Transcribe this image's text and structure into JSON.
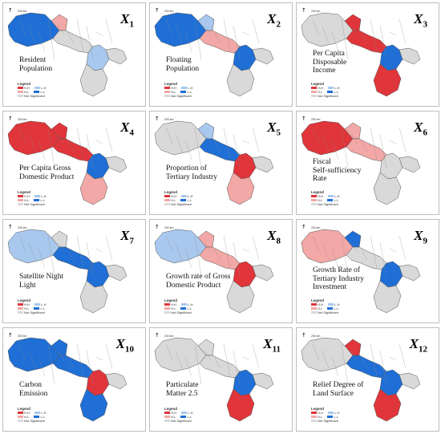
{
  "legend": {
    "title": "Legend",
    "hh": "H-H",
    "hl": "H-L",
    "lh": "L-H",
    "ll": "L-L",
    "ns": "Not Significant"
  },
  "scale_text": "200 km",
  "north_glyph": "↑",
  "colors": {
    "hh": "#e0353a",
    "hl": "#f2a8a6",
    "lh": "#a9c8ee",
    "ll": "#1f6fd6",
    "ns": "#d9d9d9",
    "outline": "#555555"
  },
  "panels": [
    {
      "xvar": "X",
      "xsub": "1",
      "label": "Resident\nPopulation",
      "hot": {
        "nw": "ll",
        "ne": "hl",
        "mid": "ns",
        "se": "lh",
        "s": "ns"
      }
    },
    {
      "xvar": "X",
      "xsub": "2",
      "label": "Floating\nPopulation",
      "hot": {
        "nw": "ll",
        "ne": "lh",
        "mid": "hl",
        "se": "ll",
        "s": "ns"
      }
    },
    {
      "xvar": "X",
      "xsub": "3",
      "label": "Per Capita\nDisposable\nIncome",
      "hot": {
        "nw": "ns",
        "ne": "hh",
        "mid": "hh",
        "se": "ll",
        "s": "hh"
      }
    },
    {
      "xvar": "X",
      "xsub": "4",
      "label": "Per Capita Gross\nDomestic Product",
      "hot": {
        "nw": "hh",
        "ne": "hh",
        "mid": "hh",
        "se": "ll",
        "s": "hl"
      }
    },
    {
      "xvar": "X",
      "xsub": "5",
      "label": "Proportion of\nTertiary Industry",
      "hot": {
        "nw": "ns",
        "ne": "lh",
        "mid": "ll",
        "se": "hh",
        "s": "hl"
      }
    },
    {
      "xvar": "X",
      "xsub": "6",
      "label": "Fiscal\nSelf-sufficiency\nRate",
      "hot": {
        "nw": "hh",
        "ne": "hl",
        "mid": "hl",
        "se": "ns",
        "s": "ns"
      }
    },
    {
      "xvar": "X",
      "xsub": "7",
      "label": "Satellite Night\nLight",
      "hot": {
        "nw": "lh",
        "ne": "ns",
        "mid": "ll",
        "se": "ll",
        "s": "ns"
      }
    },
    {
      "xvar": "X",
      "xsub": "8",
      "label": "Growth rate of Gross\nDomestic Product",
      "hot": {
        "nw": "lh",
        "ne": "hl",
        "mid": "hl",
        "se": "hh",
        "s": "ns"
      }
    },
    {
      "xvar": "X",
      "xsub": "9",
      "label": "Growth Rate of\nTertiary Industry\nInvestment",
      "hot": {
        "nw": "hl",
        "ne": "ll",
        "mid": "ns",
        "se": "ll",
        "s": "ns"
      }
    },
    {
      "xvar": "X",
      "xsub": "10",
      "label": "Carbon\nEmission",
      "hot": {
        "nw": "ll",
        "ne": "ll",
        "mid": "ll",
        "se": "hh",
        "s": "ll"
      }
    },
    {
      "xvar": "X",
      "xsub": "11",
      "label": "Particulate\nMatter 2.5",
      "hot": {
        "nw": "ns",
        "ne": "ns",
        "mid": "ns",
        "se": "ll",
        "s": "hh"
      }
    },
    {
      "xvar": "X",
      "xsub": "12",
      "label": "Relief Degree of\nLand Surface",
      "hot": {
        "nw": "ns",
        "ne": "hh",
        "mid": "ll",
        "se": "ll",
        "s": "hh"
      }
    }
  ]
}
